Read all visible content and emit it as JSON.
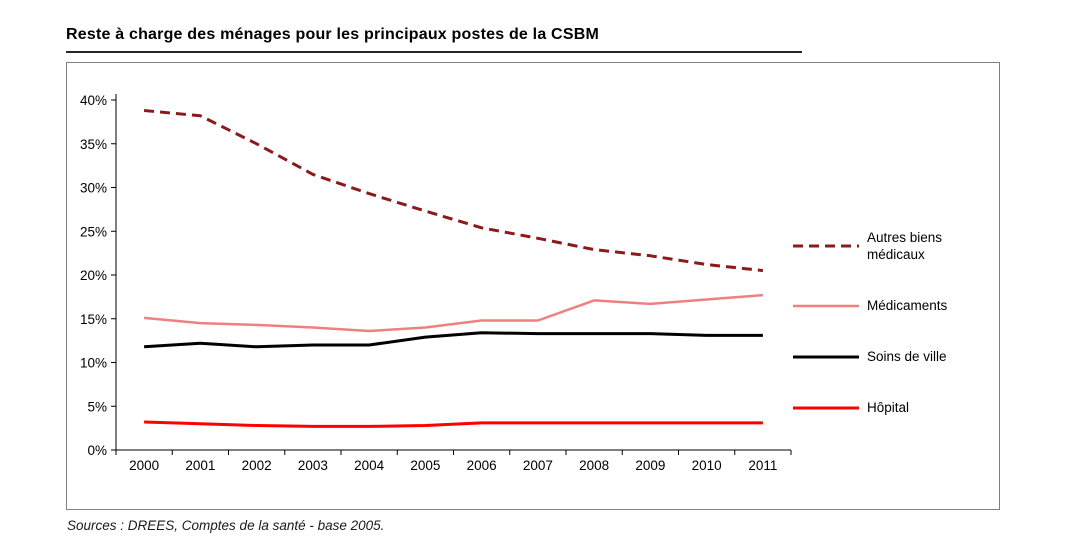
{
  "page": {
    "title": "Reste à charge des ménages pour les principaux postes de la CSBM",
    "source": "Sources : DREES, Comptes de la santé - base 2005."
  },
  "chart_data": {
    "type": "line",
    "title": "Reste à charge des ménages pour les principaux postes de la CSBM",
    "categories": [
      "2000",
      "2001",
      "2002",
      "2003",
      "2004",
      "2005",
      "2006",
      "2007",
      "2008",
      "2009",
      "2010",
      "2011"
    ],
    "series": [
      {
        "name": "Autres biens médicaux",
        "legend_lines": [
          "Autres biens",
          "médicaux"
        ],
        "color": "#8B1A1A",
        "dash": "10 6",
        "width": 3,
        "values": [
          38.8,
          38.2,
          35.0,
          31.5,
          29.3,
          27.3,
          25.4,
          24.2,
          22.9,
          22.2,
          21.2,
          20.5
        ]
      },
      {
        "name": "Médicaments",
        "legend_lines": [
          "Médicaments"
        ],
        "color": "#F08080",
        "dash": null,
        "width": 2.5,
        "values": [
          15.1,
          14.5,
          14.3,
          14.0,
          13.6,
          14.0,
          14.8,
          14.8,
          17.1,
          16.7,
          17.2,
          17.7
        ]
      },
      {
        "name": "Soins de ville",
        "legend_lines": [
          "Soins de ville"
        ],
        "color": "#000000",
        "dash": null,
        "width": 3,
        "values": [
          11.8,
          12.2,
          11.8,
          12.0,
          12.0,
          12.9,
          13.4,
          13.3,
          13.3,
          13.3,
          13.1,
          13.1
        ]
      },
      {
        "name": "Hôpital",
        "legend_lines": [
          "Hôpital"
        ],
        "color": "#FF0000",
        "dash": null,
        "width": 3,
        "values": [
          3.2,
          3.0,
          2.8,
          2.7,
          2.7,
          2.8,
          3.1,
          3.1,
          3.1,
          3.1,
          3.1,
          3.1
        ]
      }
    ],
    "ylim": [
      0,
      40
    ],
    "ytick_step": 5,
    "ytick_suffix": "%",
    "grid": false,
    "legend_position": "right",
    "xlabel": "",
    "ylabel": ""
  }
}
